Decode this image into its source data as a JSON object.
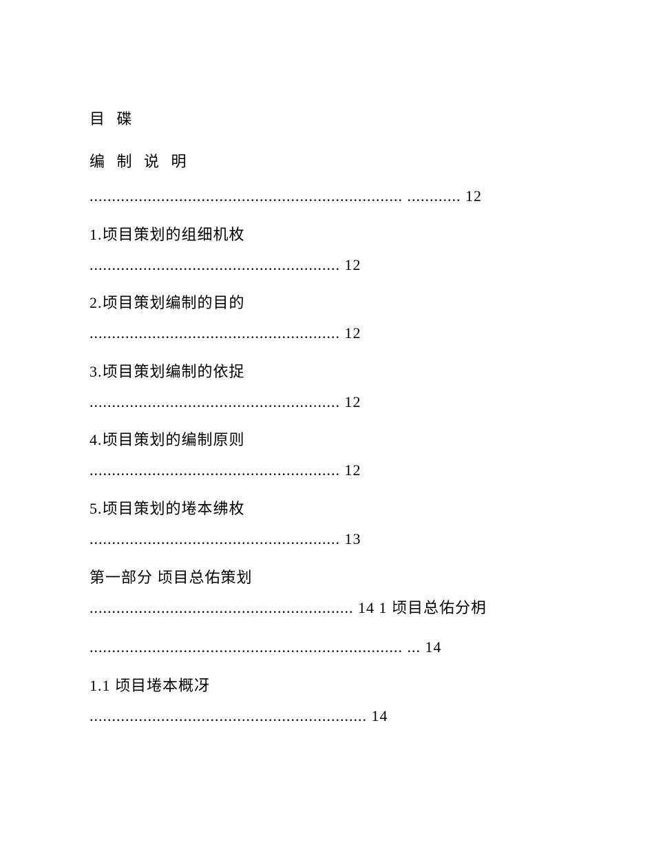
{
  "toc": {
    "title": "目 碟",
    "sectionHeader": "编 制 说 明",
    "entries": [
      {
        "type": "multiline",
        "text": "...................................................................... ............ 12"
      },
      {
        "type": "item",
        "title": "1.顷目策划的组细机枚",
        "dotsAndPage": "........................................................ 12"
      },
      {
        "type": "item",
        "title": "2.顷目策划编制的目的",
        "dotsAndPage": "........................................................ 12"
      },
      {
        "type": "item",
        "title": "3.顷目策划编制的依捉",
        "dotsAndPage": "........................................................ 12"
      },
      {
        "type": "item",
        "title": "4.顷目策划的编制原则",
        "dotsAndPage": "........................................................ 12"
      },
      {
        "type": "item",
        "title": "5.顷目策划的埢本绋枚",
        "dotsAndPage": "........................................................ 13"
      },
      {
        "type": "multiline-complex",
        "title": "第一部分 顷目总佑策划",
        "text": "........................................................... 14 1 顷目总佑分枂"
      },
      {
        "type": "multiline",
        "text": "...................................................................... ... 14"
      },
      {
        "type": "item",
        "title": "1.1 顷目埢本概冴",
        "dotsAndPage": ".............................................................. 14"
      }
    ]
  }
}
